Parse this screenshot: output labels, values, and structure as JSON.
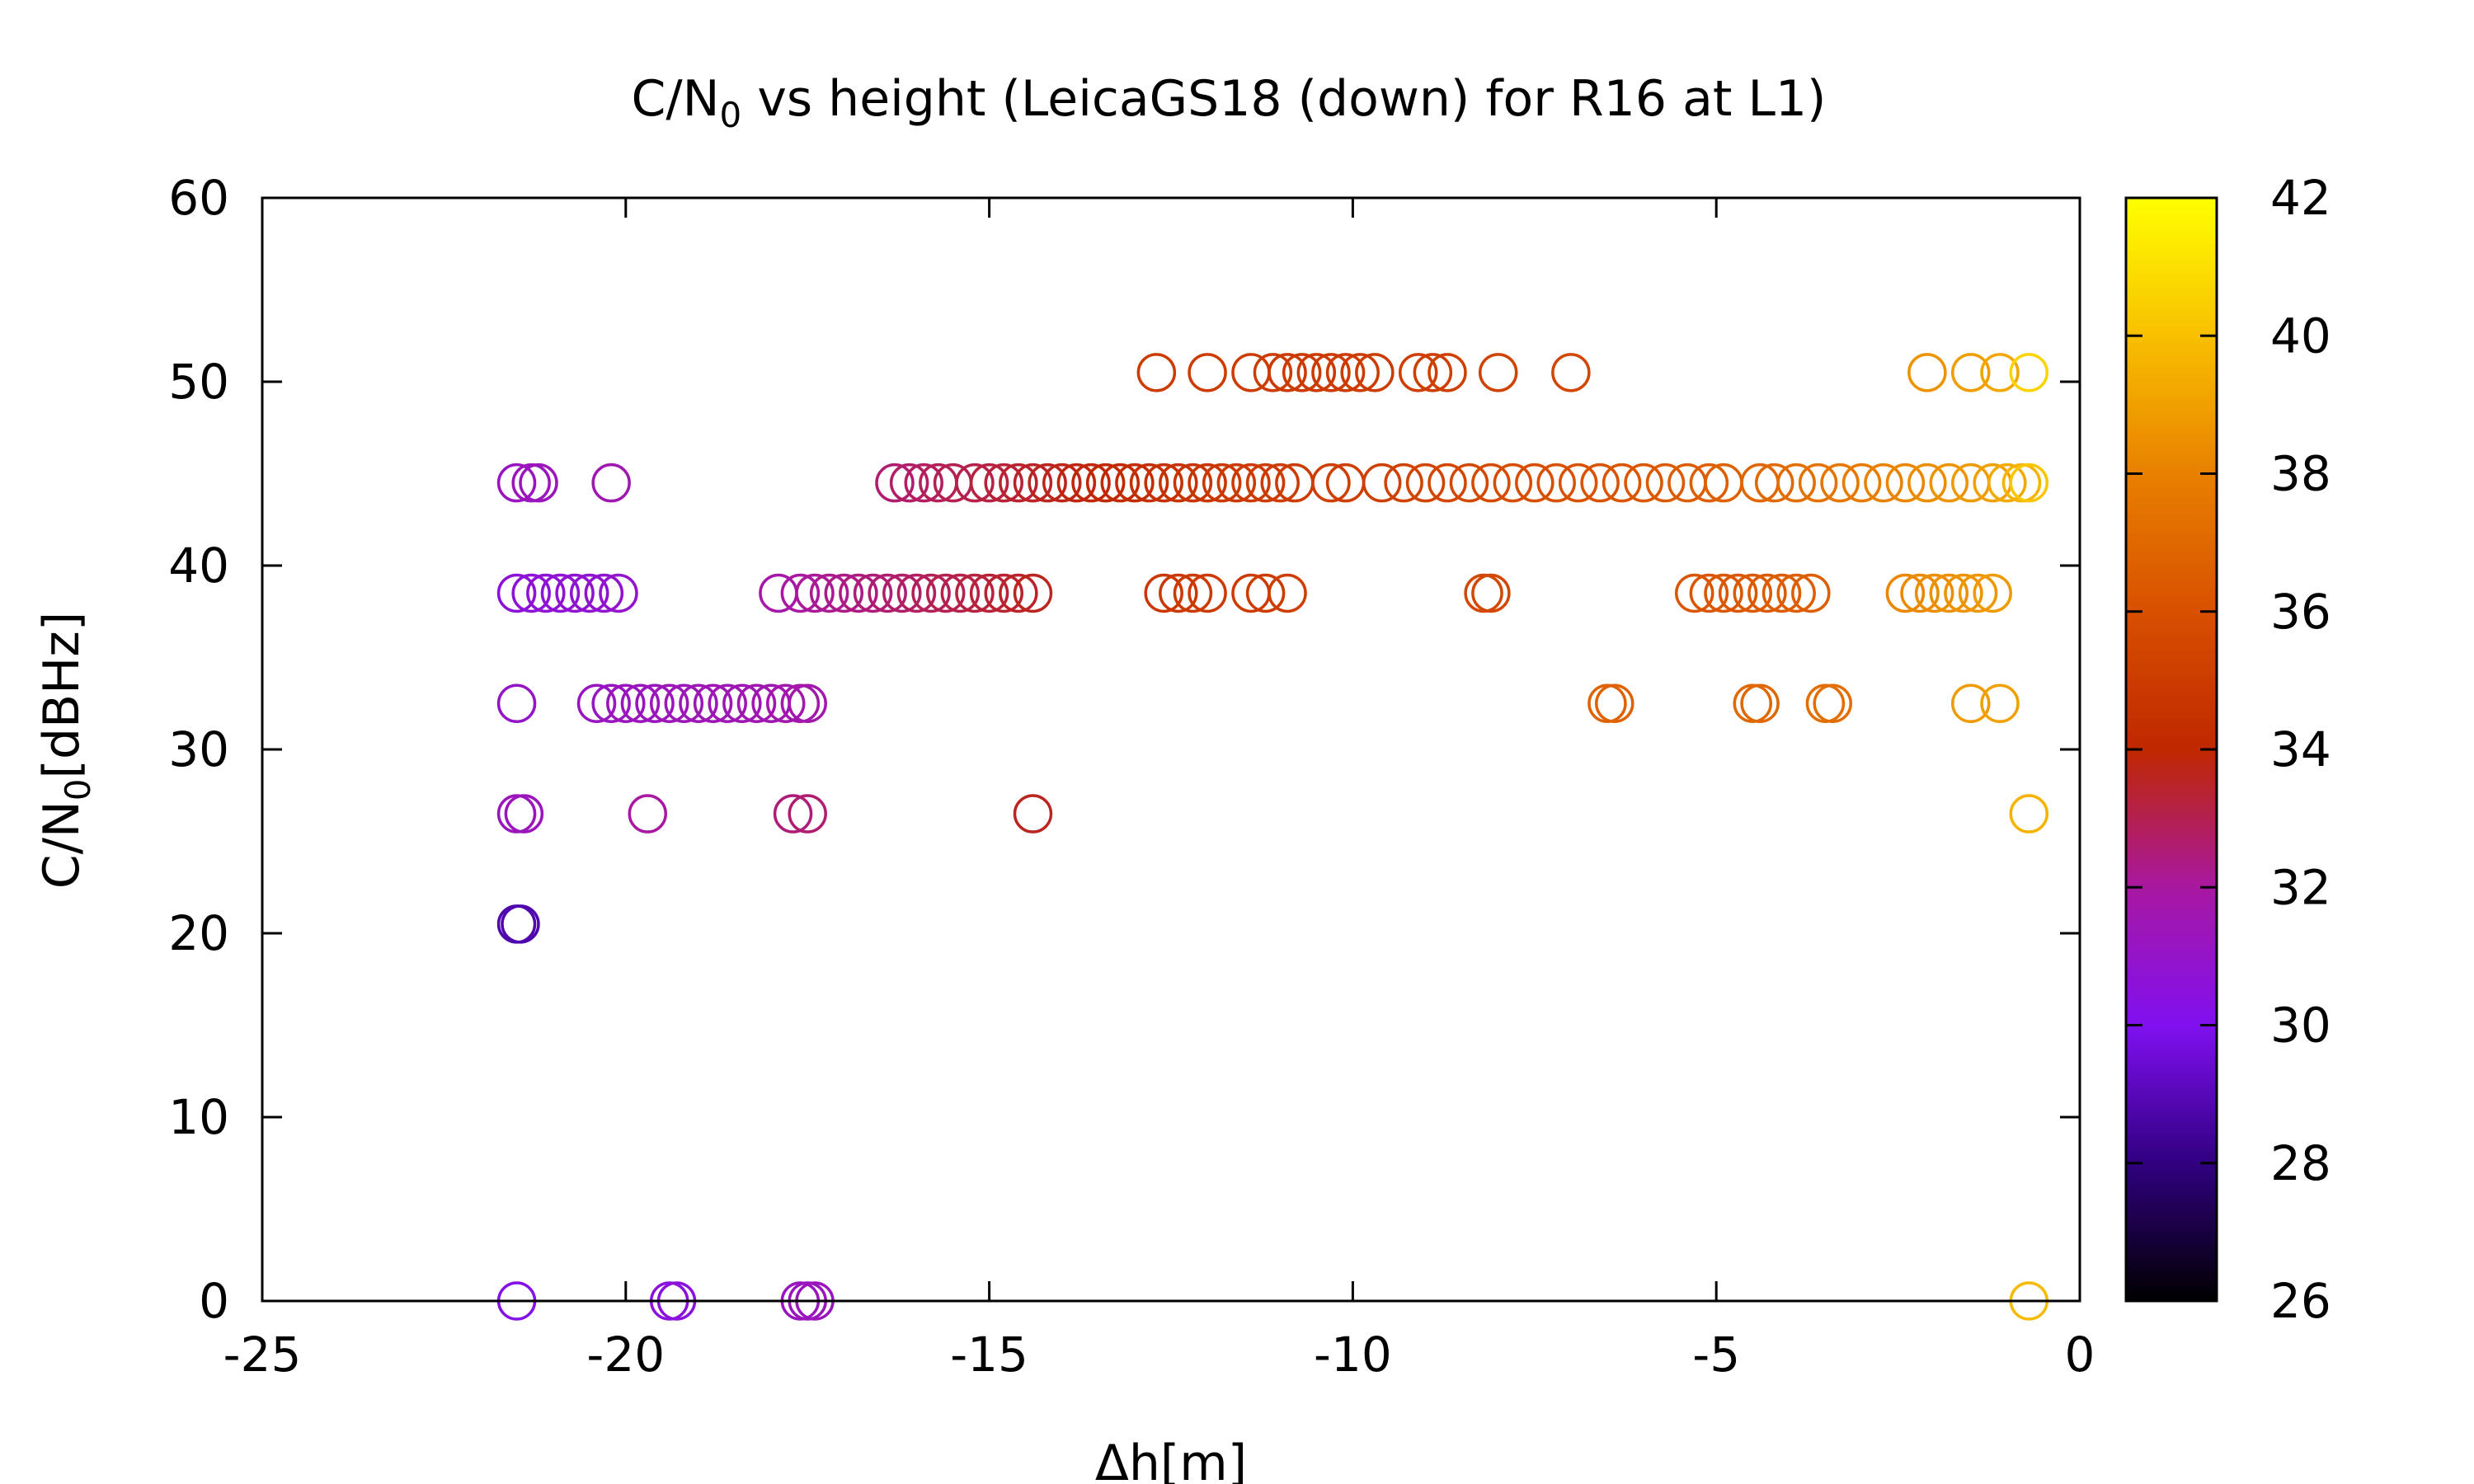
{
  "chart_data": {
    "type": "scatter",
    "title": {
      "pre": "C/N",
      "sub": "0",
      "post": " vs height (LeicaGS18 (down) for R16 at L1)"
    },
    "xlabel": "Δh[m]",
    "ylabel": {
      "pre": "C/N",
      "sub": "0",
      "post": "[dBHz]"
    },
    "xlim": [
      -25,
      0
    ],
    "ylim": [
      0,
      60
    ],
    "xticks": [
      "-25",
      "-20",
      "-15",
      "-10",
      "-5",
      "0"
    ],
    "yticks": [
      "0",
      "10",
      "20",
      "30",
      "40",
      "50",
      "60"
    ],
    "colorbar": {
      "range": [
        26,
        42
      ],
      "ticks": [
        "26",
        "28",
        "30",
        "32",
        "34",
        "36",
        "38",
        "40",
        "42"
      ],
      "palette": [
        "#000000",
        "#300080",
        "#8010f0",
        "#a818a0",
        "#c02800",
        "#d85000",
        "#e88000",
        "#f8c000",
        "#ffff00"
      ]
    },
    "marker": "open-circle",
    "grid": false,
    "legend": "none",
    "points": [
      {
        "x": -21.5,
        "y": 0,
        "c": 30.2
      },
      {
        "x": -19.4,
        "y": 0,
        "c": 30.5
      },
      {
        "x": -19.3,
        "y": 0,
        "c": 30.5
      },
      {
        "x": -17.6,
        "y": 0,
        "c": 31.2
      },
      {
        "x": -17.5,
        "y": 0,
        "c": 31.3
      },
      {
        "x": -17.4,
        "y": 0,
        "c": 31.3
      },
      {
        "x": -0.7,
        "y": 0,
        "c": 39.8
      },
      {
        "x": -21.5,
        "y": 20.5,
        "c": 28.8
      },
      {
        "x": -21.45,
        "y": 20.5,
        "c": 28.8
      },
      {
        "x": -21.5,
        "y": 26.5,
        "c": 31.3
      },
      {
        "x": -21.4,
        "y": 26.5,
        "c": 31.3
      },
      {
        "x": -19.7,
        "y": 26.5,
        "c": 32.0
      },
      {
        "x": -17.7,
        "y": 26.5,
        "c": 32.5
      },
      {
        "x": -17.5,
        "y": 26.5,
        "c": 32.6
      },
      {
        "x": -14.4,
        "y": 26.5,
        "c": 33.6
      },
      {
        "x": -0.7,
        "y": 26.5,
        "c": 39.6
      },
      {
        "x": -21.5,
        "y": 32.5,
        "c": 31.0
      },
      {
        "x": -20.4,
        "y": 32.5,
        "c": 31.2
      },
      {
        "x": -20.2,
        "y": 32.5,
        "c": 31.2
      },
      {
        "x": -20.0,
        "y": 32.5,
        "c": 31.3
      },
      {
        "x": -19.8,
        "y": 32.5,
        "c": 31.3
      },
      {
        "x": -19.6,
        "y": 32.5,
        "c": 31.3
      },
      {
        "x": -19.4,
        "y": 32.5,
        "c": 31.4
      },
      {
        "x": -19.2,
        "y": 32.5,
        "c": 31.4
      },
      {
        "x": -19.0,
        "y": 32.5,
        "c": 31.4
      },
      {
        "x": -18.8,
        "y": 32.5,
        "c": 31.5
      },
      {
        "x": -18.6,
        "y": 32.5,
        "c": 31.5
      },
      {
        "x": -18.4,
        "y": 32.5,
        "c": 31.5
      },
      {
        "x": -18.2,
        "y": 32.5,
        "c": 31.6
      },
      {
        "x": -18.0,
        "y": 32.5,
        "c": 31.6
      },
      {
        "x": -17.8,
        "y": 32.5,
        "c": 31.7
      },
      {
        "x": -17.6,
        "y": 32.5,
        "c": 31.7
      },
      {
        "x": -17.5,
        "y": 32.5,
        "c": 31.7
      },
      {
        "x": -6.5,
        "y": 32.5,
        "c": 36.8
      },
      {
        "x": -6.4,
        "y": 32.5,
        "c": 36.8
      },
      {
        "x": -4.5,
        "y": 32.5,
        "c": 37.0
      },
      {
        "x": -4.4,
        "y": 32.5,
        "c": 37.0
      },
      {
        "x": -3.5,
        "y": 32.5,
        "c": 37.2
      },
      {
        "x": -3.4,
        "y": 32.5,
        "c": 37.2
      },
      {
        "x": -1.5,
        "y": 32.5,
        "c": 38.8
      },
      {
        "x": -1.1,
        "y": 32.5,
        "c": 39.0
      },
      {
        "x": -21.5,
        "y": 38.5,
        "c": 30.6
      },
      {
        "x": -21.3,
        "y": 38.5,
        "c": 30.6
      },
      {
        "x": -21.1,
        "y": 38.5,
        "c": 30.7
      },
      {
        "x": -20.9,
        "y": 38.5,
        "c": 30.7
      },
      {
        "x": -20.7,
        "y": 38.5,
        "c": 30.8
      },
      {
        "x": -20.5,
        "y": 38.5,
        "c": 30.8
      },
      {
        "x": -20.3,
        "y": 38.5,
        "c": 30.8
      },
      {
        "x": -20.1,
        "y": 38.5,
        "c": 30.9
      },
      {
        "x": -17.9,
        "y": 38.5,
        "c": 31.8
      },
      {
        "x": -17.6,
        "y": 38.5,
        "c": 32.0
      },
      {
        "x": -17.4,
        "y": 38.5,
        "c": 32.1
      },
      {
        "x": -17.2,
        "y": 38.5,
        "c": 32.2
      },
      {
        "x": -17.0,
        "y": 38.5,
        "c": 32.3
      },
      {
        "x": -16.8,
        "y": 38.5,
        "c": 32.4
      },
      {
        "x": -16.6,
        "y": 38.5,
        "c": 32.5
      },
      {
        "x": -16.4,
        "y": 38.5,
        "c": 32.6
      },
      {
        "x": -16.2,
        "y": 38.5,
        "c": 32.7
      },
      {
        "x": -16.0,
        "y": 38.5,
        "c": 32.8
      },
      {
        "x": -15.8,
        "y": 38.5,
        "c": 32.9
      },
      {
        "x": -15.6,
        "y": 38.5,
        "c": 33.0
      },
      {
        "x": -15.4,
        "y": 38.5,
        "c": 33.1
      },
      {
        "x": -15.2,
        "y": 38.5,
        "c": 33.2
      },
      {
        "x": -15.0,
        "y": 38.5,
        "c": 33.3
      },
      {
        "x": -14.8,
        "y": 38.5,
        "c": 33.4
      },
      {
        "x": -14.6,
        "y": 38.5,
        "c": 33.5
      },
      {
        "x": -14.4,
        "y": 38.5,
        "c": 33.6
      },
      {
        "x": -12.6,
        "y": 38.5,
        "c": 34.8
      },
      {
        "x": -12.4,
        "y": 38.5,
        "c": 34.8
      },
      {
        "x": -12.2,
        "y": 38.5,
        "c": 34.9
      },
      {
        "x": -12.0,
        "y": 38.5,
        "c": 34.9
      },
      {
        "x": -11.4,
        "y": 38.5,
        "c": 35.0
      },
      {
        "x": -11.2,
        "y": 38.5,
        "c": 35.0
      },
      {
        "x": -10.9,
        "y": 38.5,
        "c": 35.1
      },
      {
        "x": -8.2,
        "y": 38.5,
        "c": 35.6
      },
      {
        "x": -8.1,
        "y": 38.5,
        "c": 35.6
      },
      {
        "x": -5.3,
        "y": 38.5,
        "c": 36.2
      },
      {
        "x": -5.1,
        "y": 38.5,
        "c": 36.2
      },
      {
        "x": -4.9,
        "y": 38.5,
        "c": 36.3
      },
      {
        "x": -4.7,
        "y": 38.5,
        "c": 36.3
      },
      {
        "x": -4.5,
        "y": 38.5,
        "c": 36.4
      },
      {
        "x": -4.3,
        "y": 38.5,
        "c": 36.4
      },
      {
        "x": -4.1,
        "y": 38.5,
        "c": 36.5
      },
      {
        "x": -3.9,
        "y": 38.5,
        "c": 36.6
      },
      {
        "x": -3.7,
        "y": 38.5,
        "c": 36.6
      },
      {
        "x": -2.4,
        "y": 38.5,
        "c": 38.2
      },
      {
        "x": -2.2,
        "y": 38.5,
        "c": 38.3
      },
      {
        "x": -2.0,
        "y": 38.5,
        "c": 38.4
      },
      {
        "x": -1.8,
        "y": 38.5,
        "c": 38.5
      },
      {
        "x": -1.6,
        "y": 38.5,
        "c": 38.6
      },
      {
        "x": -1.4,
        "y": 38.5,
        "c": 38.7
      },
      {
        "x": -1.2,
        "y": 38.5,
        "c": 38.8
      },
      {
        "x": -21.5,
        "y": 44.5,
        "c": 31.2
      },
      {
        "x": -21.3,
        "y": 44.5,
        "c": 31.3
      },
      {
        "x": -21.2,
        "y": 44.5,
        "c": 31.3
      },
      {
        "x": -20.2,
        "y": 44.5,
        "c": 31.6
      },
      {
        "x": -16.3,
        "y": 44.5,
        "c": 32.6
      },
      {
        "x": -16.1,
        "y": 44.5,
        "c": 32.7
      },
      {
        "x": -15.9,
        "y": 44.5,
        "c": 32.8
      },
      {
        "x": -15.7,
        "y": 44.5,
        "c": 32.9
      },
      {
        "x": -15.5,
        "y": 44.5,
        "c": 33.0
      },
      {
        "x": -15.2,
        "y": 44.5,
        "c": 33.1
      },
      {
        "x": -15.0,
        "y": 44.5,
        "c": 33.2
      },
      {
        "x": -14.8,
        "y": 44.5,
        "c": 33.3
      },
      {
        "x": -14.6,
        "y": 44.5,
        "c": 33.4
      },
      {
        "x": -14.4,
        "y": 44.5,
        "c": 33.5
      },
      {
        "x": -14.2,
        "y": 44.5,
        "c": 33.6
      },
      {
        "x": -14.0,
        "y": 44.5,
        "c": 33.7
      },
      {
        "x": -13.8,
        "y": 44.5,
        "c": 33.8
      },
      {
        "x": -13.6,
        "y": 44.5,
        "c": 33.9
      },
      {
        "x": -13.4,
        "y": 44.5,
        "c": 34.0
      },
      {
        "x": -13.2,
        "y": 44.5,
        "c": 34.1
      },
      {
        "x": -13.0,
        "y": 44.5,
        "c": 34.2
      },
      {
        "x": -12.8,
        "y": 44.5,
        "c": 34.3
      },
      {
        "x": -12.6,
        "y": 44.5,
        "c": 34.4
      },
      {
        "x": -12.4,
        "y": 44.5,
        "c": 34.5
      },
      {
        "x": -12.2,
        "y": 44.5,
        "c": 34.6
      },
      {
        "x": -12.0,
        "y": 44.5,
        "c": 34.7
      },
      {
        "x": -11.8,
        "y": 44.5,
        "c": 34.8
      },
      {
        "x": -11.6,
        "y": 44.5,
        "c": 34.9
      },
      {
        "x": -11.4,
        "y": 44.5,
        "c": 34.9
      },
      {
        "x": -11.2,
        "y": 44.5,
        "c": 35.0
      },
      {
        "x": -11.0,
        "y": 44.5,
        "c": 35.0
      },
      {
        "x": -10.8,
        "y": 44.5,
        "c": 35.0
      },
      {
        "x": -10.3,
        "y": 44.5,
        "c": 35.1
      },
      {
        "x": -10.1,
        "y": 44.5,
        "c": 35.1
      },
      {
        "x": -9.6,
        "y": 44.5,
        "c": 35.2
      },
      {
        "x": -9.3,
        "y": 44.5,
        "c": 35.3
      },
      {
        "x": -9.0,
        "y": 44.5,
        "c": 35.4
      },
      {
        "x": -8.7,
        "y": 44.5,
        "c": 35.5
      },
      {
        "x": -8.4,
        "y": 44.5,
        "c": 35.6
      },
      {
        "x": -8.1,
        "y": 44.5,
        "c": 35.7
      },
      {
        "x": -7.8,
        "y": 44.5,
        "c": 35.8
      },
      {
        "x": -7.5,
        "y": 44.5,
        "c": 35.9
      },
      {
        "x": -7.2,
        "y": 44.5,
        "c": 36.0
      },
      {
        "x": -6.9,
        "y": 44.5,
        "c": 36.0
      },
      {
        "x": -6.6,
        "y": 44.5,
        "c": 36.1
      },
      {
        "x": -6.3,
        "y": 44.5,
        "c": 36.2
      },
      {
        "x": -6.0,
        "y": 44.5,
        "c": 36.3
      },
      {
        "x": -5.7,
        "y": 44.5,
        "c": 36.4
      },
      {
        "x": -5.4,
        "y": 44.5,
        "c": 36.5
      },
      {
        "x": -5.1,
        "y": 44.5,
        "c": 36.6
      },
      {
        "x": -4.9,
        "y": 44.5,
        "c": 36.7
      },
      {
        "x": -4.4,
        "y": 44.5,
        "c": 36.9
      },
      {
        "x": -4.2,
        "y": 44.5,
        "c": 37.0
      },
      {
        "x": -3.9,
        "y": 44.5,
        "c": 37.2
      },
      {
        "x": -3.6,
        "y": 44.5,
        "c": 37.4
      },
      {
        "x": -3.3,
        "y": 44.5,
        "c": 37.6
      },
      {
        "x": -3.0,
        "y": 44.5,
        "c": 37.8
      },
      {
        "x": -2.7,
        "y": 44.5,
        "c": 38.0
      },
      {
        "x": -2.4,
        "y": 44.5,
        "c": 38.2
      },
      {
        "x": -2.1,
        "y": 44.5,
        "c": 38.4
      },
      {
        "x": -1.8,
        "y": 44.5,
        "c": 38.6
      },
      {
        "x": -1.5,
        "y": 44.5,
        "c": 38.8
      },
      {
        "x": -1.2,
        "y": 44.5,
        "c": 39.0
      },
      {
        "x": -1.0,
        "y": 44.5,
        "c": 39.3
      },
      {
        "x": -0.8,
        "y": 44.5,
        "c": 39.6
      },
      {
        "x": -0.7,
        "y": 44.5,
        "c": 40.2
      },
      {
        "x": -12.7,
        "y": 50.5,
        "c": 35.0
      },
      {
        "x": -12.0,
        "y": 50.5,
        "c": 35.0
      },
      {
        "x": -11.4,
        "y": 50.5,
        "c": 35.0
      },
      {
        "x": -11.1,
        "y": 50.5,
        "c": 35.0
      },
      {
        "x": -10.9,
        "y": 50.5,
        "c": 34.9
      },
      {
        "x": -10.7,
        "y": 50.5,
        "c": 34.9
      },
      {
        "x": -10.5,
        "y": 50.5,
        "c": 34.9
      },
      {
        "x": -10.3,
        "y": 50.5,
        "c": 34.9
      },
      {
        "x": -10.1,
        "y": 50.5,
        "c": 35.0
      },
      {
        "x": -9.9,
        "y": 50.5,
        "c": 35.0
      },
      {
        "x": -9.7,
        "y": 50.5,
        "c": 35.0
      },
      {
        "x": -9.1,
        "y": 50.5,
        "c": 35.1
      },
      {
        "x": -8.9,
        "y": 50.5,
        "c": 35.1
      },
      {
        "x": -8.7,
        "y": 50.5,
        "c": 35.2
      },
      {
        "x": -8.0,
        "y": 50.5,
        "c": 35.3
      },
      {
        "x": -7.0,
        "y": 50.5,
        "c": 35.5
      },
      {
        "x": -2.1,
        "y": 50.5,
        "c": 38.6
      },
      {
        "x": -1.5,
        "y": 50.5,
        "c": 38.9
      },
      {
        "x": -1.1,
        "y": 50.5,
        "c": 39.2
      },
      {
        "x": -0.7,
        "y": 50.5,
        "c": 40.6
      }
    ]
  }
}
